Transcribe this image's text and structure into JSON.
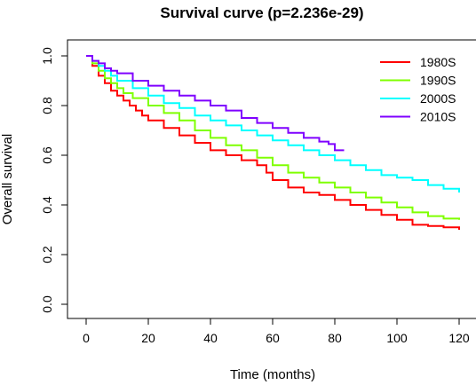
{
  "chart_data": {
    "type": "line",
    "title": "Survival curve (p=2.236e-29)",
    "xlabel": "Time (months)",
    "ylabel": "Overall survival",
    "xlim": [
      0,
      120
    ],
    "ylim": [
      0,
      1
    ],
    "x_ticks": [
      "0",
      "20",
      "40",
      "60",
      "80",
      "100",
      "120"
    ],
    "y_ticks": [
      "0.0",
      "0.2",
      "0.4",
      "0.6",
      "0.8",
      "1.0"
    ],
    "legend_position": "top-right",
    "grid": false,
    "series": [
      {
        "name": "1980S",
        "color": "#ff0000",
        "x": [
          0,
          2,
          4,
          6,
          8,
          10,
          12,
          14,
          16,
          18,
          20,
          25,
          30,
          35,
          40,
          45,
          50,
          55,
          58,
          60,
          65,
          70,
          75,
          80,
          85,
          90,
          95,
          100,
          105,
          110,
          115,
          120
        ],
        "y": [
          1.0,
          0.96,
          0.92,
          0.89,
          0.86,
          0.84,
          0.82,
          0.8,
          0.78,
          0.76,
          0.74,
          0.71,
          0.68,
          0.65,
          0.62,
          0.6,
          0.58,
          0.56,
          0.53,
          0.5,
          0.47,
          0.45,
          0.44,
          0.42,
          0.4,
          0.38,
          0.36,
          0.34,
          0.32,
          0.315,
          0.31,
          0.3
        ]
      },
      {
        "name": "1990S",
        "color": "#7fff00",
        "x": [
          0,
          2,
          4,
          6,
          8,
          10,
          12,
          15,
          20,
          25,
          30,
          35,
          40,
          45,
          50,
          55,
          60,
          65,
          70,
          75,
          80,
          85,
          90,
          95,
          100,
          105,
          110,
          115,
          120
        ],
        "y": [
          1.0,
          0.97,
          0.94,
          0.91,
          0.89,
          0.87,
          0.85,
          0.83,
          0.8,
          0.77,
          0.74,
          0.7,
          0.67,
          0.64,
          0.62,
          0.59,
          0.56,
          0.53,
          0.51,
          0.49,
          0.47,
          0.45,
          0.43,
          0.41,
          0.39,
          0.37,
          0.355,
          0.345,
          0.34
        ]
      },
      {
        "name": "2000S",
        "color": "#00ffff",
        "x": [
          0,
          2,
          4,
          6,
          8,
          10,
          15,
          20,
          25,
          30,
          35,
          40,
          45,
          50,
          55,
          60,
          65,
          70,
          75,
          80,
          85,
          90,
          95,
          100,
          105,
          110,
          115,
          120
        ],
        "y": [
          1.0,
          0.98,
          0.96,
          0.94,
          0.92,
          0.9,
          0.87,
          0.84,
          0.81,
          0.79,
          0.76,
          0.74,
          0.72,
          0.7,
          0.68,
          0.66,
          0.64,
          0.62,
          0.6,
          0.58,
          0.56,
          0.54,
          0.52,
          0.51,
          0.5,
          0.48,
          0.465,
          0.45
        ]
      },
      {
        "name": "2010S",
        "color": "#7f00ff",
        "x": [
          0,
          2,
          4,
          6,
          8,
          10,
          15,
          20,
          25,
          30,
          35,
          40,
          45,
          50,
          55,
          60,
          65,
          70,
          75,
          78,
          80,
          82,
          83
        ],
        "y": [
          1.0,
          0.98,
          0.97,
          0.95,
          0.94,
          0.93,
          0.9,
          0.88,
          0.86,
          0.84,
          0.82,
          0.8,
          0.78,
          0.75,
          0.73,
          0.71,
          0.69,
          0.67,
          0.655,
          0.645,
          0.62,
          0.62,
          0.62
        ]
      }
    ]
  }
}
